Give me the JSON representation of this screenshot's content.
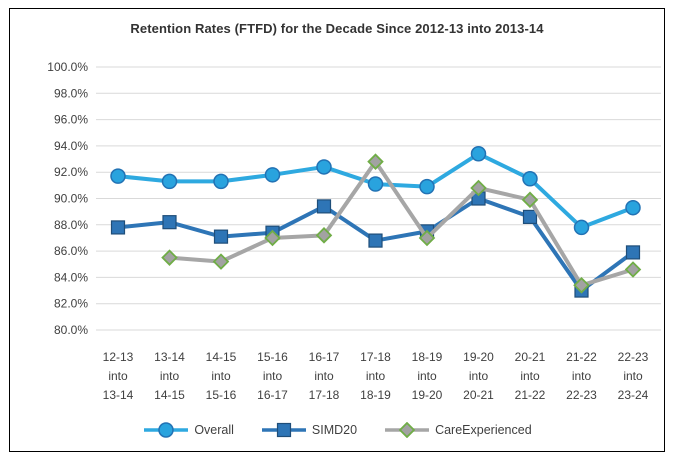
{
  "chart_data": {
    "type": "line",
    "title": "Retention Rates (FTFD) for the Decade Since 2012-13 into 2013-14",
    "categories": [
      "12-13 into 13-14",
      "13-14 into 14-15",
      "14-15 into 15-16",
      "15-16 into 16-17",
      "16-17 into 17-18",
      "17-18 into 18-19",
      "18-19 into 19-20",
      "19-20 into 20-21",
      "20-21 into 21-22",
      "21-22 into 22-23",
      "22-23 into 23-24"
    ],
    "y_axis": {
      "min": 80,
      "max": 100,
      "step": 2,
      "tick_labels": [
        "100.0%",
        "98.0%",
        "96.0%",
        "94.0%",
        "92.0%",
        "90.0%",
        "88.0%",
        "86.0%",
        "84.0%",
        "82.0%",
        "80.0%"
      ]
    },
    "series": [
      {
        "name": "Overall",
        "marker": "circle",
        "line_color": "#2EA9E0",
        "marker_fill": "#29A3DE",
        "marker_stroke": "#2272B4",
        "values": [
          91.7,
          91.3,
          91.3,
          91.8,
          92.4,
          91.1,
          90.9,
          93.4,
          91.5,
          87.8,
          89.3
        ]
      },
      {
        "name": "SIMD20",
        "marker": "square",
        "line_color": "#2E75B6",
        "marker_fill": "#2E75B6",
        "marker_stroke": "#1F4E79",
        "values": [
          87.8,
          88.2,
          87.1,
          87.4,
          89.4,
          86.8,
          87.5,
          90.0,
          88.6,
          83.0,
          85.9
        ]
      },
      {
        "name": "CareExperienced",
        "marker": "diamond",
        "line_color": "#A6A6A6",
        "marker_fill": "#A2A2A2",
        "marker_stroke": "#70AD47",
        "values": [
          null,
          85.5,
          85.2,
          87.0,
          87.2,
          92.8,
          87.0,
          90.8,
          89.9,
          83.4,
          84.6
        ]
      }
    ],
    "legend_position": "bottom",
    "grid_on": true,
    "colors": {
      "grid": "#D9D9D9",
      "axis_text": "#404040",
      "title_text": "#333333",
      "frame_border": "#000000",
      "background": "#ffffff"
    }
  }
}
